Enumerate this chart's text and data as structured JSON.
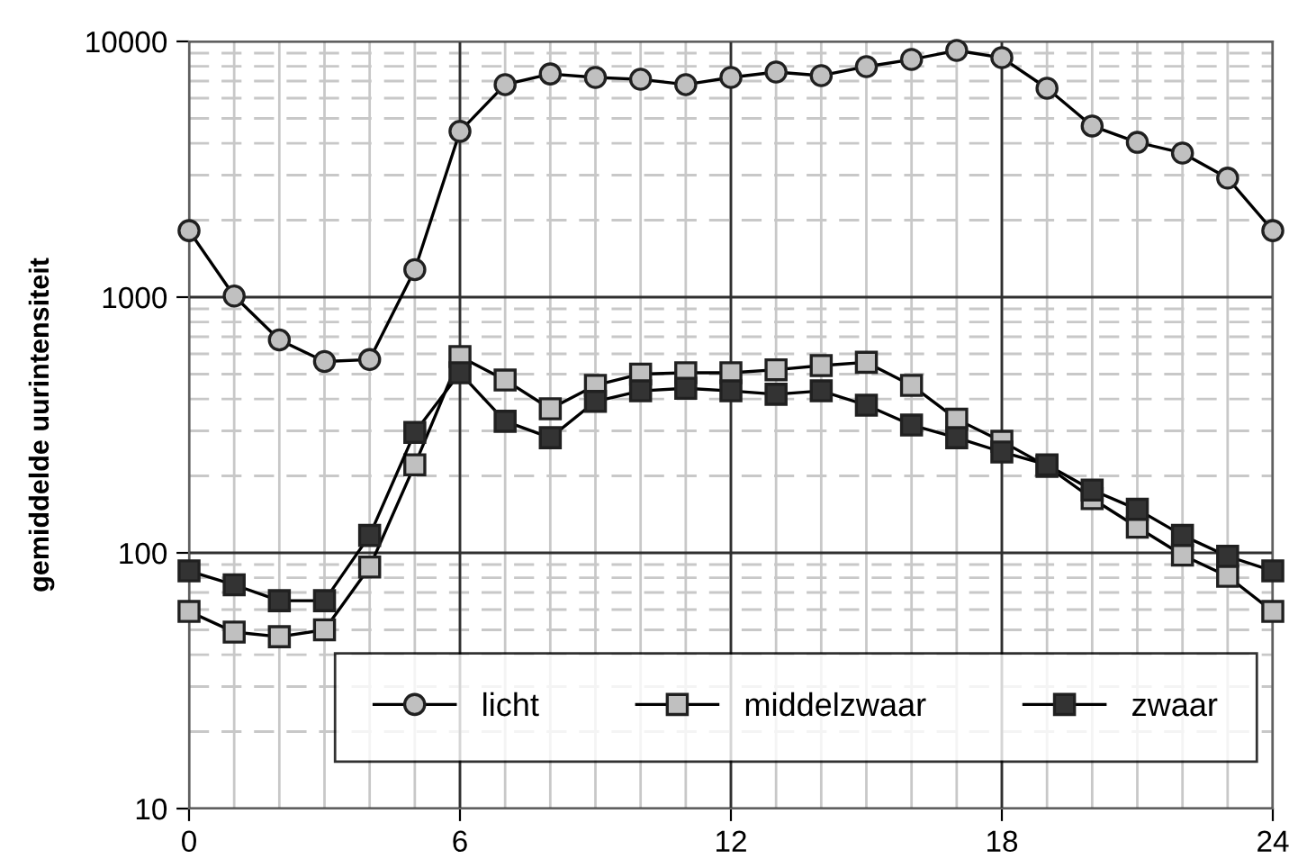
{
  "chart_data": {
    "type": "line",
    "ylabel": "gemiddelde uurintensiteit",
    "x": [
      0,
      1,
      2,
      3,
      4,
      5,
      6,
      7,
      8,
      9,
      10,
      11,
      12,
      13,
      14,
      15,
      16,
      17,
      18,
      19,
      20,
      21,
      22,
      23,
      24
    ],
    "series": [
      {
        "name": "licht",
        "color": "#c0c0c0",
        "marker": "circle",
        "values": [
          1820,
          1010,
          680,
          560,
          570,
          1280,
          4450,
          6780,
          7460,
          7230,
          7110,
          6780,
          7230,
          7590,
          7350,
          7970,
          8500,
          9220,
          8640,
          6560,
          4670,
          4030,
          3660,
          2920,
          1820
        ]
      },
      {
        "name": "middelzwaar",
        "color": "#c0c0c0",
        "marker": "square",
        "values": [
          59,
          49,
          47,
          50,
          88,
          221,
          586,
          474,
          366,
          452,
          500,
          506,
          506,
          520,
          540,
          556,
          452,
          333,
          273,
          218,
          163,
          126,
          98,
          81,
          59
        ]
      },
      {
        "name": "zwaar",
        "color": "#333333",
        "marker": "square",
        "values": [
          85,
          75,
          65,
          65,
          117,
          296,
          506,
          327,
          282,
          391,
          430,
          440,
          430,
          417,
          430,
          378,
          316,
          282,
          248,
          221,
          176,
          148,
          117,
          97,
          85
        ]
      }
    ],
    "log": "y",
    "xlim": [
      0,
      24
    ],
    "xticks": [
      0,
      6,
      12,
      18,
      24
    ],
    "ylim": [
      10,
      10000
    ],
    "yticks": [
      10,
      100,
      1000,
      10000
    ],
    "grid": true,
    "legend": "bottom",
    "line_style": "solid"
  }
}
